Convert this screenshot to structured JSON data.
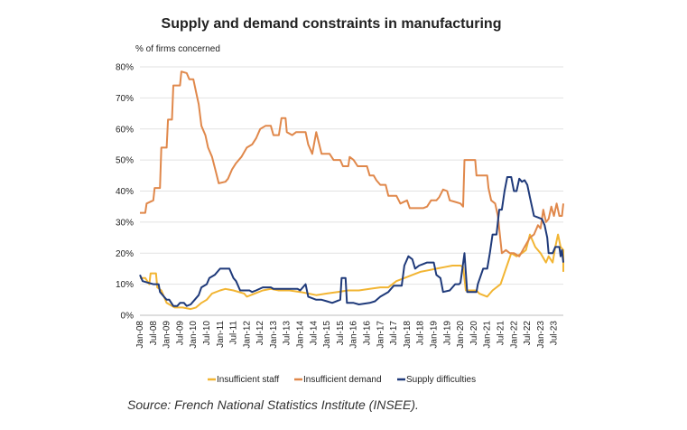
{
  "chart_data": {
    "type": "line",
    "title": "Supply and demand constraints in manufacturing",
    "ylabel": "% of firms concerned",
    "xlabel": "",
    "ylim": [
      0,
      80
    ],
    "yticks": [
      "0%",
      "10%",
      "20%",
      "30%",
      "40%",
      "50%",
      "60%",
      "70%",
      "80%"
    ],
    "ytick_values": [
      0,
      10,
      20,
      30,
      40,
      50,
      60,
      70,
      80
    ],
    "xticks": [
      "Jan-08",
      "Jul-08",
      "Jan-09",
      "Jul-09",
      "Jan-10",
      "Jul-10",
      "Jan-11",
      "Jul-11",
      "Jan-12",
      "Jul-12",
      "Jan-13",
      "Jul-13",
      "Jan-14",
      "Jul-14",
      "Jan-15",
      "Jul-15",
      "Jan-16",
      "Jul-16",
      "Jan-17",
      "Jul-17",
      "Jan-18",
      "Jul-18",
      "Jan-19",
      "Jul-19",
      "Jan-20",
      "Jul-20",
      "Jan-21",
      "Jul-21",
      "Jan-22",
      "Jul-22",
      "Jan-23",
      "Jul-23"
    ],
    "x_start": 2008.0,
    "x_end": 2023.85,
    "grid": true,
    "legend_position": "bottom",
    "series": [
      {
        "name": "Insufficient staff",
        "color": "#F2B533",
        "points": [
          [
            2008.0,
            12
          ],
          [
            2008.2,
            12
          ],
          [
            2008.35,
            10
          ],
          [
            2008.4,
            13.5
          ],
          [
            2008.6,
            13.5
          ],
          [
            2008.65,
            9
          ],
          [
            2008.8,
            8
          ],
          [
            2009.0,
            4
          ],
          [
            2009.3,
            2.5
          ],
          [
            2009.6,
            2.5
          ],
          [
            2009.9,
            2
          ],
          [
            2010.1,
            2.5
          ],
          [
            2010.3,
            4
          ],
          [
            2010.5,
            5
          ],
          [
            2010.7,
            7
          ],
          [
            2011.0,
            8
          ],
          [
            2011.2,
            8.5
          ],
          [
            2011.5,
            8
          ],
          [
            2011.9,
            7
          ],
          [
            2012.0,
            6
          ],
          [
            2012.3,
            7
          ],
          [
            2012.6,
            8
          ],
          [
            2012.9,
            8.5
          ],
          [
            2013.2,
            8
          ],
          [
            2013.6,
            8
          ],
          [
            2014.0,
            7.5
          ],
          [
            2014.3,
            7
          ],
          [
            2014.6,
            6.5
          ],
          [
            2015.0,
            7
          ],
          [
            2015.4,
            7.5
          ],
          [
            2015.8,
            8
          ],
          [
            2016.2,
            8
          ],
          [
            2016.6,
            8.5
          ],
          [
            2017.0,
            9
          ],
          [
            2017.3,
            9
          ],
          [
            2017.6,
            11
          ],
          [
            2017.9,
            12
          ],
          [
            2018.2,
            13
          ],
          [
            2018.5,
            14
          ],
          [
            2018.8,
            14.5
          ],
          [
            2019.1,
            15
          ],
          [
            2019.4,
            15.5
          ],
          [
            2019.7,
            16
          ],
          [
            2020.0,
            16
          ],
          [
            2020.1,
            15.5
          ],
          [
            2020.2,
            8
          ],
          [
            2020.6,
            8
          ],
          [
            2020.7,
            7
          ],
          [
            2021.0,
            6
          ],
          [
            2021.2,
            8
          ],
          [
            2021.5,
            10
          ],
          [
            2021.7,
            15
          ],
          [
            2021.9,
            20
          ],
          [
            2022.1,
            19
          ],
          [
            2022.3,
            20
          ],
          [
            2022.45,
            21
          ],
          [
            2022.6,
            26
          ],
          [
            2022.8,
            22
          ],
          [
            2023.0,
            20
          ],
          [
            2023.2,
            17
          ],
          [
            2023.3,
            19
          ],
          [
            2023.45,
            17
          ],
          [
            2023.55,
            22
          ],
          [
            2023.65,
            26
          ],
          [
            2023.75,
            22
          ],
          [
            2023.85,
            21
          ],
          [
            2023.85,
            14
          ]
        ]
      },
      {
        "name": "Insufficient demand",
        "color": "#E0884B",
        "points": [
          [
            2008.0,
            33
          ],
          [
            2008.2,
            33
          ],
          [
            2008.25,
            36
          ],
          [
            2008.5,
            37
          ],
          [
            2008.55,
            41
          ],
          [
            2008.75,
            41
          ],
          [
            2008.8,
            54
          ],
          [
            2009.0,
            54
          ],
          [
            2009.05,
            63
          ],
          [
            2009.2,
            63
          ],
          [
            2009.25,
            74
          ],
          [
            2009.5,
            74
          ],
          [
            2009.55,
            78.5
          ],
          [
            2009.75,
            78
          ],
          [
            2009.85,
            76
          ],
          [
            2010.0,
            76
          ],
          [
            2010.1,
            72
          ],
          [
            2010.2,
            68
          ],
          [
            2010.3,
            61
          ],
          [
            2010.45,
            58
          ],
          [
            2010.55,
            54
          ],
          [
            2010.7,
            51
          ],
          [
            2010.85,
            46
          ],
          [
            2010.95,
            42.5
          ],
          [
            2011.2,
            43
          ],
          [
            2011.3,
            44
          ],
          [
            2011.45,
            47
          ],
          [
            2011.6,
            49
          ],
          [
            2011.8,
            51
          ],
          [
            2012.0,
            54
          ],
          [
            2012.2,
            55
          ],
          [
            2012.35,
            57
          ],
          [
            2012.5,
            60
          ],
          [
            2012.7,
            61
          ],
          [
            2012.9,
            61
          ],
          [
            2013.0,
            58
          ],
          [
            2013.2,
            58
          ],
          [
            2013.3,
            63.5
          ],
          [
            2013.45,
            63.5
          ],
          [
            2013.5,
            59
          ],
          [
            2013.7,
            58
          ],
          [
            2013.85,
            59
          ],
          [
            2014.2,
            59
          ],
          [
            2014.3,
            55
          ],
          [
            2014.45,
            52
          ],
          [
            2014.6,
            59
          ],
          [
            2014.8,
            52
          ],
          [
            2015.1,
            52
          ],
          [
            2015.25,
            50
          ],
          [
            2015.5,
            50
          ],
          [
            2015.6,
            48
          ],
          [
            2015.8,
            48
          ],
          [
            2015.85,
            51
          ],
          [
            2016.0,
            50
          ],
          [
            2016.15,
            48
          ],
          [
            2016.5,
            48
          ],
          [
            2016.6,
            45
          ],
          [
            2016.75,
            45
          ],
          [
            2016.85,
            43.5
          ],
          [
            2017.0,
            42
          ],
          [
            2017.2,
            42
          ],
          [
            2017.3,
            38.5
          ],
          [
            2017.6,
            38.5
          ],
          [
            2017.75,
            36
          ],
          [
            2018.0,
            37
          ],
          [
            2018.1,
            34.5
          ],
          [
            2018.6,
            34.5
          ],
          [
            2018.75,
            35
          ],
          [
            2018.9,
            37
          ],
          [
            2019.1,
            37
          ],
          [
            2019.2,
            38
          ],
          [
            2019.35,
            40.5
          ],
          [
            2019.5,
            40
          ],
          [
            2019.6,
            37
          ],
          [
            2019.8,
            36.5
          ],
          [
            2020.0,
            36
          ],
          [
            2020.1,
            35
          ],
          [
            2020.15,
            50
          ],
          [
            2020.55,
            50
          ],
          [
            2020.6,
            45
          ],
          [
            2021.0,
            45
          ],
          [
            2021.05,
            41
          ],
          [
            2021.15,
            37
          ],
          [
            2021.3,
            36
          ],
          [
            2021.4,
            32
          ],
          [
            2021.55,
            20
          ],
          [
            2021.7,
            21
          ],
          [
            2021.85,
            20
          ],
          [
            2022.0,
            20
          ],
          [
            2022.2,
            19
          ],
          [
            2022.4,
            22
          ],
          [
            2022.6,
            25
          ],
          [
            2022.75,
            26
          ],
          [
            2022.9,
            29
          ],
          [
            2023.0,
            28
          ],
          [
            2023.1,
            34
          ],
          [
            2023.2,
            30
          ],
          [
            2023.3,
            31
          ],
          [
            2023.4,
            35
          ],
          [
            2023.5,
            32
          ],
          [
            2023.6,
            36
          ],
          [
            2023.7,
            32
          ],
          [
            2023.8,
            32
          ],
          [
            2023.85,
            36
          ]
        ]
      },
      {
        "name": "Supply difficulties",
        "color": "#1F3A7A",
        "points": [
          [
            2008.0,
            13
          ],
          [
            2008.1,
            11
          ],
          [
            2008.3,
            10.5
          ],
          [
            2008.5,
            10
          ],
          [
            2008.7,
            10
          ],
          [
            2008.75,
            7.5
          ],
          [
            2008.9,
            6
          ],
          [
            2009.0,
            5
          ],
          [
            2009.1,
            5
          ],
          [
            2009.25,
            3
          ],
          [
            2009.4,
            3
          ],
          [
            2009.5,
            4
          ],
          [
            2009.65,
            4
          ],
          [
            2009.75,
            3
          ],
          [
            2009.9,
            3.5
          ],
          [
            2010.05,
            5
          ],
          [
            2010.2,
            6.5
          ],
          [
            2010.3,
            9
          ],
          [
            2010.5,
            10
          ],
          [
            2010.6,
            12
          ],
          [
            2010.8,
            13
          ],
          [
            2011.0,
            15
          ],
          [
            2011.35,
            15
          ],
          [
            2011.5,
            12
          ],
          [
            2011.6,
            11
          ],
          [
            2011.75,
            8
          ],
          [
            2011.9,
            8
          ],
          [
            2012.1,
            8
          ],
          [
            2012.2,
            7.5
          ],
          [
            2012.35,
            8
          ],
          [
            2012.6,
            9
          ],
          [
            2012.9,
            9
          ],
          [
            2013.0,
            8.5
          ],
          [
            2013.3,
            8.5
          ],
          [
            2013.6,
            8.5
          ],
          [
            2013.9,
            8.5
          ],
          [
            2014.0,
            8
          ],
          [
            2014.2,
            10
          ],
          [
            2014.3,
            6
          ],
          [
            2014.6,
            5
          ],
          [
            2014.8,
            5
          ],
          [
            2015.0,
            4.5
          ],
          [
            2015.2,
            4
          ],
          [
            2015.5,
            5
          ],
          [
            2015.55,
            12
          ],
          [
            2015.7,
            12
          ],
          [
            2015.75,
            4
          ],
          [
            2016.0,
            4
          ],
          [
            2016.2,
            3.5
          ],
          [
            2016.6,
            4
          ],
          [
            2016.8,
            4.5
          ],
          [
            2017.0,
            6
          ],
          [
            2017.3,
            7.5
          ],
          [
            2017.5,
            9.5
          ],
          [
            2017.8,
            9.5
          ],
          [
            2017.9,
            16
          ],
          [
            2018.05,
            19
          ],
          [
            2018.2,
            18
          ],
          [
            2018.3,
            15
          ],
          [
            2018.45,
            16
          ],
          [
            2018.6,
            16.5
          ],
          [
            2018.75,
            17
          ],
          [
            2019.0,
            17
          ],
          [
            2019.1,
            13
          ],
          [
            2019.25,
            12
          ],
          [
            2019.35,
            7.5
          ],
          [
            2019.6,
            8
          ],
          [
            2019.8,
            10
          ],
          [
            2019.95,
            10
          ],
          [
            2020.0,
            10.5
          ],
          [
            2020.15,
            20
          ],
          [
            2020.25,
            7.5
          ],
          [
            2020.6,
            7.5
          ],
          [
            2020.65,
            10
          ],
          [
            2020.85,
            15
          ],
          [
            2021.0,
            15
          ],
          [
            2021.1,
            20
          ],
          [
            2021.2,
            26
          ],
          [
            2021.35,
            26
          ],
          [
            2021.45,
            34
          ],
          [
            2021.55,
            34
          ],
          [
            2021.65,
            40
          ],
          [
            2021.75,
            44.5
          ],
          [
            2021.9,
            44.5
          ],
          [
            2022.0,
            40
          ],
          [
            2022.1,
            40
          ],
          [
            2022.2,
            44
          ],
          [
            2022.3,
            43
          ],
          [
            2022.4,
            43.5
          ],
          [
            2022.5,
            42
          ],
          [
            2022.6,
            38
          ],
          [
            2022.75,
            32
          ],
          [
            2022.9,
            31.5
          ],
          [
            2023.05,
            31
          ],
          [
            2023.15,
            29
          ],
          [
            2023.25,
            25
          ],
          [
            2023.3,
            20
          ],
          [
            2023.45,
            20
          ],
          [
            2023.55,
            22
          ],
          [
            2023.7,
            22
          ],
          [
            2023.75,
            19
          ],
          [
            2023.8,
            21
          ],
          [
            2023.85,
            17
          ]
        ]
      }
    ],
    "legend": [
      {
        "label": "Insufficient staff",
        "color": "#F2B533"
      },
      {
        "label": "Insufficient demand",
        "color": "#E0884B"
      },
      {
        "label": "Supply difficulties",
        "color": "#1F3A7A"
      }
    ]
  },
  "source": "Source: French National Statistics Institute (INSEE)."
}
